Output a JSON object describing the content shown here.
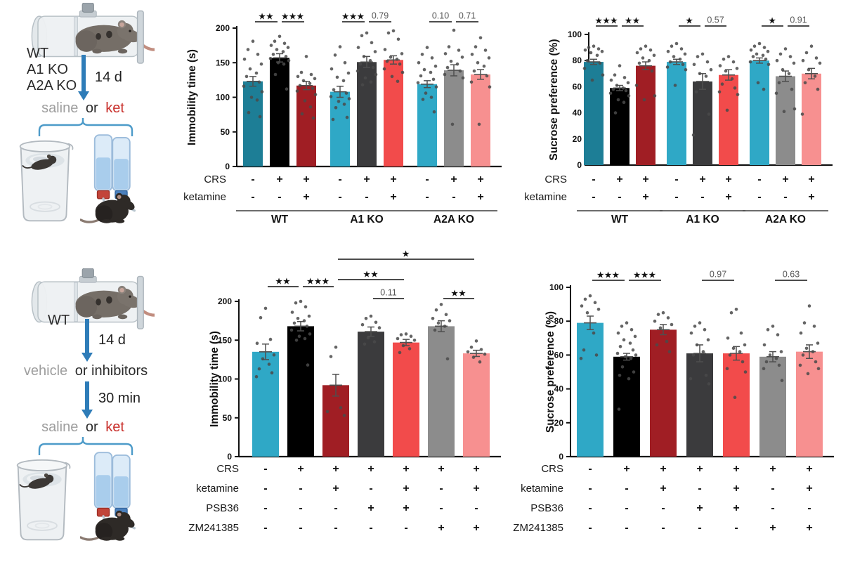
{
  "colors": {
    "teal": "#1D7E96",
    "black": "#000000",
    "dark_red": "#A01E24",
    "cyan": "#2FA8C6",
    "dark_gray": "#3B3B3D",
    "red": "#F24B4B",
    "gray": "#8C8C8C",
    "salmon": "#F79090",
    "arrow_blue": "#2E7CB8",
    "bracket_blue": "#4D9BC9",
    "accent_red": "#C9302C",
    "muted_text": "#9E9E9E"
  },
  "diagrams": {
    "top": {
      "genotypes": [
        "WT",
        "A1 KO",
        "A2A KO"
      ],
      "duration": "14 d",
      "treatment": {
        "muted": "saline",
        "conj": "or",
        "accent": "ket"
      }
    },
    "bottom": {
      "genotype": "WT",
      "duration1": "14 d",
      "pretreatment": {
        "muted": "vehicle",
        "rest": "or inhibitors"
      },
      "duration2": "30 min",
      "treatment": {
        "muted": "saline",
        "conj": "or",
        "accent": "ket"
      }
    }
  },
  "chart_data": [
    {
      "id": "immobility-genotypes",
      "type": "bar",
      "ylabel": "Immobility time (s)",
      "ylim": [
        0,
        200
      ],
      "yticks": [
        0,
        50,
        100,
        150,
        200
      ],
      "bar_colors": [
        "#1D7E96",
        "#000000",
        "#A01E24",
        "#2FA8C6",
        "#3B3B3D",
        "#F24B4B",
        "#2FA8C6",
        "#8C8C8C",
        "#F79090"
      ],
      "means": [
        123,
        157,
        117,
        108,
        151,
        154,
        119,
        139,
        133
      ],
      "sems": [
        7,
        6,
        6,
        8,
        8,
        6,
        5,
        8,
        7
      ],
      "points": [
        [
          181,
          169,
          162,
          155,
          148,
          141,
          135,
          130,
          122,
          116,
          108,
          100,
          96,
          78,
          72
        ],
        [
          188,
          181,
          178,
          175,
          172,
          169,
          166,
          162,
          159,
          156,
          153,
          150,
          148,
          133,
          112
        ],
        [
          159,
          136,
          133,
          130,
          127,
          124,
          120,
          117,
          113,
          109,
          104,
          95,
          86,
          76,
          70
        ],
        [
          173,
          161,
          150,
          141,
          135,
          129,
          124,
          111,
          106,
          101,
          98,
          94,
          90,
          85,
          71,
          68
        ],
        [
          193,
          189,
          179,
          172,
          166,
          159,
          153,
          148,
          143,
          138,
          133,
          128,
          122,
          118
        ],
        [
          196,
          193,
          184,
          169,
          163,
          158,
          155,
          152,
          148,
          141,
          136,
          130,
          123
        ],
        [
          172,
          162,
          157,
          150,
          145,
          140,
          136,
          131,
          126,
          121,
          115,
          106,
          100,
          97,
          79
        ],
        [
          197,
          173,
          168,
          163,
          158,
          152,
          148,
          143,
          138,
          133,
          128,
          61
        ],
        [
          186,
          173,
          168,
          162,
          157,
          150,
          145,
          138,
          131,
          122,
          115,
          61
        ]
      ],
      "significance": [
        {
          "bars": [
            0,
            1
          ],
          "label": "**",
          "level": 0
        },
        {
          "bars": [
            1,
            2
          ],
          "label": "***",
          "level": 0
        },
        {
          "bars": [
            3,
            4
          ],
          "label": "***",
          "level": 0
        },
        {
          "bars": [
            4,
            5
          ],
          "label": "0.79",
          "level": 0
        },
        {
          "bars": [
            6,
            7
          ],
          "label": "0.10",
          "level": 0
        },
        {
          "bars": [
            7,
            8
          ],
          "label": "0.71",
          "level": 0
        }
      ],
      "table": {
        "rows": [
          {
            "label": "CRS",
            "values": [
              "-",
              "+",
              "+",
              "-",
              "+",
              "+",
              "-",
              "+",
              "+"
            ]
          },
          {
            "label": "ketamine",
            "values": [
              "-",
              "-",
              "+",
              "-",
              "-",
              "+",
              "-",
              "-",
              "+"
            ]
          }
        ]
      },
      "groups": [
        {
          "label": "WT",
          "from": 0,
          "to": 2
        },
        {
          "label": "A1 KO",
          "from": 3,
          "to": 5
        },
        {
          "label": "A2A KO",
          "from": 6,
          "to": 8
        }
      ]
    },
    {
      "id": "sucrose-genotypes",
      "type": "bar",
      "ylabel": "Sucrose preference (%)",
      "ylim": [
        0,
        100
      ],
      "yticks": [
        0,
        20,
        40,
        60,
        80,
        100
      ],
      "bar_colors": [
        "#1D7E96",
        "#000000",
        "#A01E24",
        "#2FA8C6",
        "#3B3B3D",
        "#F24B4B",
        "#2FA8C6",
        "#8C8C8C",
        "#F79090"
      ],
      "means": [
        79,
        59,
        76,
        79,
        64,
        69,
        80,
        68,
        70
      ],
      "sems": [
        2,
        2,
        3,
        2,
        6,
        4,
        2,
        4,
        4
      ],
      "points": [
        [
          91,
          90,
          89,
          88,
          87,
          86,
          84,
          80,
          78,
          74,
          69,
          65
        ],
        [
          76,
          69,
          67,
          65,
          63,
          61,
          59,
          58,
          57,
          55,
          53,
          50,
          48,
          40
        ],
        [
          91,
          89,
          88,
          86,
          84,
          82,
          80,
          78,
          72,
          61,
          53,
          50
        ],
        [
          93,
          91,
          89,
          87,
          85,
          83,
          81,
          79,
          77,
          75,
          73,
          61
        ],
        [
          85,
          83,
          79,
          77,
          73,
          70,
          68,
          56,
          39,
          23
        ],
        [
          83,
          81,
          79,
          76,
          74,
          72,
          66,
          62,
          59,
          56,
          54,
          42
        ],
        [
          93,
          91,
          90,
          88,
          87,
          85,
          84,
          83,
          81,
          79,
          77,
          63,
          58
        ],
        [
          89,
          85,
          83,
          80,
          78,
          73,
          70,
          63,
          58,
          55,
          43,
          41
        ],
        [
          91,
          86,
          82,
          80,
          78,
          73,
          68,
          63,
          58,
          39
        ]
      ],
      "significance": [
        {
          "bars": [
            0,
            1
          ],
          "label": "***",
          "level": 0
        },
        {
          "bars": [
            1,
            2
          ],
          "label": "**",
          "level": 0
        },
        {
          "bars": [
            3,
            4
          ],
          "label": "*",
          "level": 0
        },
        {
          "bars": [
            4,
            5
          ],
          "label": "0.57",
          "level": 0
        },
        {
          "bars": [
            6,
            7
          ],
          "label": "*",
          "level": 0
        },
        {
          "bars": [
            7,
            8
          ],
          "label": "0.91",
          "level": 0
        }
      ],
      "table": {
        "rows": [
          {
            "label": "CRS",
            "values": [
              "-",
              "+",
              "+",
              "-",
              "+",
              "+",
              "-",
              "+",
              "+"
            ]
          },
          {
            "label": "ketamine",
            "values": [
              "-",
              "-",
              "+",
              "-",
              "-",
              "+",
              "-",
              "-",
              "+"
            ]
          }
        ]
      },
      "groups": [
        {
          "label": "WT",
          "from": 0,
          "to": 2
        },
        {
          "label": "A1 KO",
          "from": 3,
          "to": 5
        },
        {
          "label": "A2A KO",
          "from": 6,
          "to": 8
        }
      ]
    },
    {
      "id": "immobility-inhibitors",
      "type": "bar",
      "ylabel": "Immobility time (s)",
      "ylim": [
        0,
        200
      ],
      "yticks": [
        0,
        50,
        100,
        150,
        200
      ],
      "bar_colors": [
        "#2FA8C6",
        "#000000",
        "#A01E24",
        "#3B3B3D",
        "#F24B4B",
        "#8C8C8C",
        "#F79090"
      ],
      "means": [
        135,
        168,
        92,
        161,
        147,
        168,
        133
      ],
      "sems": [
        10,
        6,
        14,
        6,
        4,
        7,
        4
      ],
      "points": [
        [
          191,
          179,
          151,
          146,
          131,
          126,
          119,
          113,
          108,
          103
        ],
        [
          200,
          198,
          193,
          186,
          181,
          178,
          175,
          172,
          168,
          163,
          158,
          155,
          152,
          150,
          118
        ],
        [
          141,
          129,
          63,
          58,
          53
        ],
        [
          181,
          178,
          173,
          170,
          166,
          153,
          148,
          145
        ],
        [
          158,
          157,
          155,
          152,
          150,
          143,
          139,
          134
        ],
        [
          196,
          189,
          183,
          178,
          175,
          172,
          168,
          163,
          126
        ],
        [
          149,
          141,
          138,
          135,
          132,
          128,
          122
        ]
      ],
      "significance": [
        {
          "bars": [
            0,
            1
          ],
          "label": "**",
          "level": 1
        },
        {
          "bars": [
            1,
            2
          ],
          "label": "***",
          "level": 1
        },
        {
          "bars": [
            2,
            4
          ],
          "label": "**",
          "level": 2
        },
        {
          "bars": [
            2,
            6
          ],
          "label": "*",
          "level": 3
        },
        {
          "bars": [
            3,
            4
          ],
          "label": "0.11",
          "level": 0
        },
        {
          "bars": [
            5,
            6
          ],
          "label": "**",
          "level": 0
        }
      ],
      "table": {
        "rows": [
          {
            "label": "CRS",
            "values": [
              "-",
              "+",
              "+",
              "+",
              "+",
              "+",
              "+"
            ]
          },
          {
            "label": "ketamine",
            "values": [
              "-",
              "-",
              "+",
              "-",
              "+",
              "-",
              "+"
            ]
          },
          {
            "label": "PSB36",
            "values": [
              "-",
              "-",
              "-",
              "+",
              "+",
              "-",
              "-"
            ]
          },
          {
            "label": "ZM241385",
            "values": [
              "-",
              "-",
              "-",
              "-",
              "-",
              "+",
              "+"
            ]
          }
        ]
      }
    },
    {
      "id": "sucrose-inhibitors",
      "type": "bar",
      "ylabel": "Sucrose preference (%)",
      "ylim": [
        0,
        100
      ],
      "yticks": [
        0,
        20,
        40,
        60,
        80,
        100
      ],
      "bar_colors": [
        "#2FA8C6",
        "#000000",
        "#A01E24",
        "#3B3B3D",
        "#F24B4B",
        "#8C8C8C",
        "#F79090"
      ],
      "means": [
        79,
        59,
        75,
        61,
        61,
        59,
        62
      ],
      "sems": [
        4,
        2,
        3,
        5,
        4,
        3,
        4
      ],
      "points": [
        [
          95,
          93,
          91,
          89,
          87,
          85,
          73,
          63,
          60,
          58
        ],
        [
          79,
          77,
          75,
          73,
          71,
          69,
          67,
          65,
          63,
          61,
          60,
          59,
          58,
          53,
          50,
          48,
          46,
          28
        ],
        [
          85,
          84,
          82,
          80,
          78,
          76,
          68,
          66,
          62
        ],
        [
          79,
          77,
          75,
          73,
          69,
          66,
          62,
          60,
          48,
          46,
          43
        ],
        [
          87,
          85,
          73,
          70,
          66,
          64,
          62,
          60,
          56,
          52,
          50,
          35
        ],
        [
          77,
          75,
          72,
          66,
          62,
          60,
          58,
          56,
          54,
          52,
          45
        ],
        [
          89,
          79,
          77,
          73,
          67,
          64,
          62,
          60,
          56,
          54,
          52,
          49
        ]
      ],
      "significance": [
        {
          "bars": [
            0,
            1
          ],
          "label": "***",
          "level": 0
        },
        {
          "bars": [
            1,
            2
          ],
          "label": "***",
          "level": 0
        },
        {
          "bars": [
            3,
            4
          ],
          "label": "0.97",
          "level": 0
        },
        {
          "bars": [
            5,
            6
          ],
          "label": "0.63",
          "level": 0
        }
      ],
      "table": {
        "rows": [
          {
            "label": "CRS",
            "values": [
              "-",
              "+",
              "+",
              "+",
              "+",
              "+",
              "+"
            ]
          },
          {
            "label": "ketamine",
            "values": [
              "-",
              "-",
              "+",
              "-",
              "+",
              "-",
              "+"
            ]
          },
          {
            "label": "PSB36",
            "values": [
              "-",
              "-",
              "-",
              "+",
              "+",
              "-",
              "-"
            ]
          },
          {
            "label": "ZM241385",
            "values": [
              "-",
              "-",
              "-",
              "-",
              "-",
              "+",
              "+"
            ]
          }
        ]
      }
    }
  ]
}
